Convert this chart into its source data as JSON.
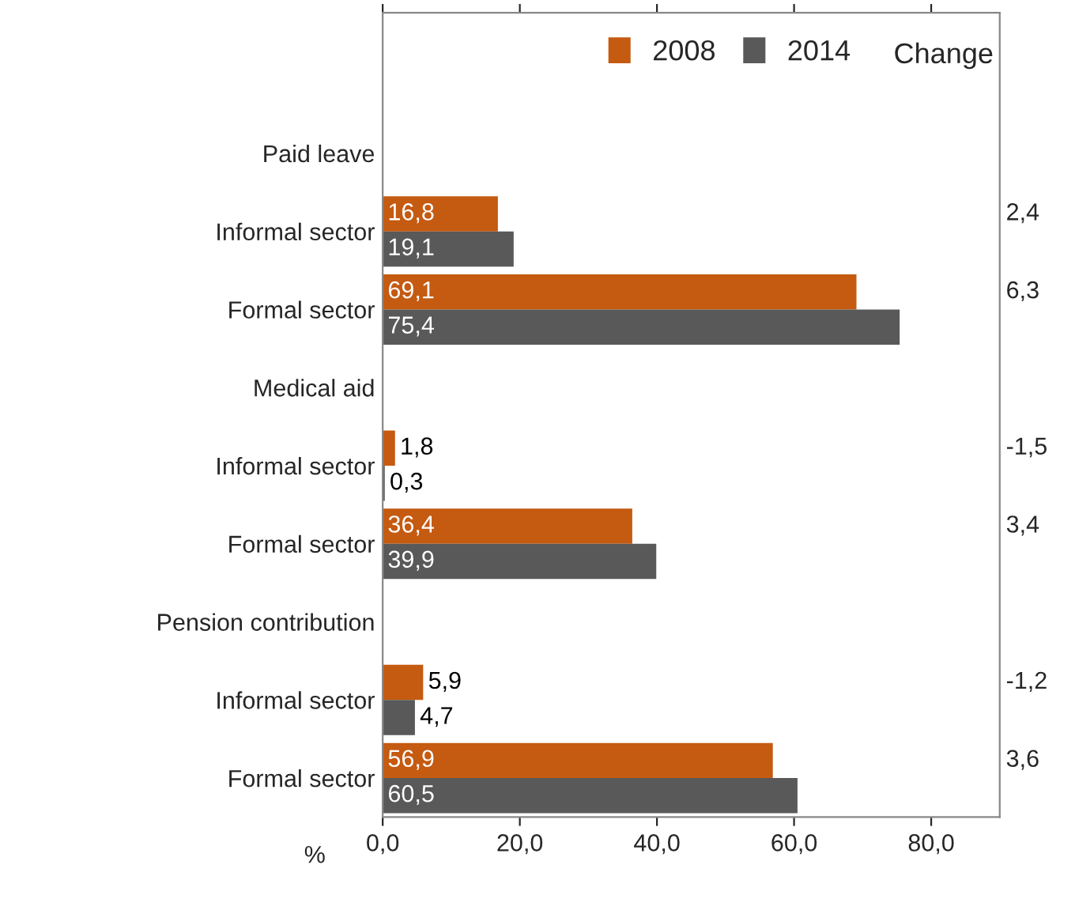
{
  "chart_data": {
    "type": "bar",
    "orientation": "horizontal",
    "categories": [
      "Paid leave",
      "Informal sector",
      "Formal sector",
      "Medical aid",
      "Informal sector",
      "Formal sector",
      "Pension contribution",
      "Informal sector",
      "Formal sector"
    ],
    "series": [
      {
        "name": "2008",
        "color": "#c55a11",
        "values": [
          null,
          16.8,
          69.1,
          null,
          1.8,
          36.4,
          null,
          5.9,
          56.9
        ],
        "value_labels": [
          null,
          "16,8",
          "69,1",
          null,
          "1,8",
          "36,4",
          null,
          "5,9",
          "56,9"
        ]
      },
      {
        "name": "2014",
        "color": "#595959",
        "values": [
          null,
          19.1,
          75.4,
          null,
          0.3,
          39.9,
          null,
          4.7,
          60.5
        ],
        "value_labels": [
          null,
          "19,1",
          "75,4",
          null,
          "0,3",
          "39,9",
          null,
          "4,7",
          "60,5"
        ]
      }
    ],
    "xlim": [
      0,
      90
    ],
    "xticks": [
      {
        "value": 0,
        "label": "0,0"
      },
      {
        "value": 20,
        "label": "20,0"
      },
      {
        "value": 40,
        "label": "40,0"
      },
      {
        "value": 60,
        "label": "60,0"
      },
      {
        "value": 80,
        "label": "80,0"
      }
    ],
    "xlabel": "%",
    "annotations": [
      "Change",
      "2,4",
      "6,3",
      "-1,5",
      "3,4",
      "-1,2",
      "3,6"
    ],
    "legend": "top right"
  }
}
